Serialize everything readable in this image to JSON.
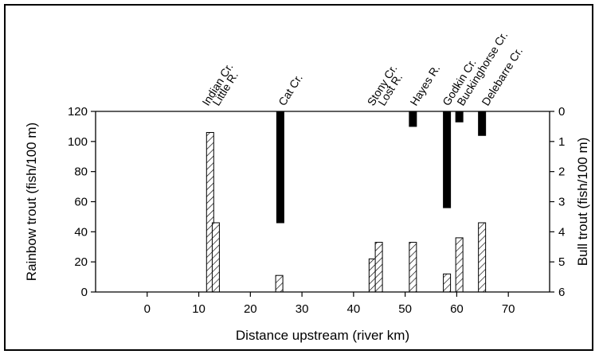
{
  "chart_data": {
    "type": "bar",
    "xlabel": "Distance upstream (river km)",
    "ylabel_left": "Rainbow trout (fish/100 m)",
    "ylabel_right": "Bull trout (fish/100 m)",
    "xlim": [
      -10,
      78
    ],
    "ylim_left": [
      0,
      120
    ],
    "ylim_right_inverted": [
      0,
      6
    ],
    "xticks": [
      0,
      10,
      20,
      30,
      40,
      50,
      60,
      70
    ],
    "yticks_left": [
      0,
      20,
      40,
      60,
      80,
      100,
      120
    ],
    "yticks_right": [
      0,
      1,
      2,
      3,
      4,
      5,
      6
    ],
    "tributaries": [
      {
        "label": "Indian Cr.",
        "x": 11.2
      },
      {
        "label": "Little R.",
        "x": 13.2
      },
      {
        "label": "Cat Cr.",
        "x": 26.0
      },
      {
        "label": "Stony Cr.",
        "x": 43.2
      },
      {
        "label": "Lost R.",
        "x": 45.3
      },
      {
        "label": "Hayes R.",
        "x": 51.5
      },
      {
        "label": "Godkin Cr.",
        "x": 57.8
      },
      {
        "label": "Buckinghorse Cr.",
        "x": 60.6
      },
      {
        "label": "Delebarre Cr.",
        "x": 65.4
      }
    ],
    "series": [
      {
        "name": "Rainbow trout",
        "axis": "left",
        "pattern": "hatched",
        "points": [
          {
            "x": 12.2,
            "value": 106
          },
          {
            "x": 13.3,
            "value": 46
          },
          {
            "x": 25.6,
            "value": 11
          },
          {
            "x": 43.7,
            "value": 22
          },
          {
            "x": 44.9,
            "value": 33
          },
          {
            "x": 51.5,
            "value": 33
          },
          {
            "x": 58.1,
            "value": 12
          },
          {
            "x": 60.5,
            "value": 36
          },
          {
            "x": 64.9,
            "value": 46
          }
        ]
      },
      {
        "name": "Bull trout",
        "axis": "right",
        "pattern": "solid",
        "points": [
          {
            "x": 25.8,
            "value": 3.7
          },
          {
            "x": 51.5,
            "value": 0.5
          },
          {
            "x": 58.1,
            "value": 3.2
          },
          {
            "x": 60.5,
            "value": 0.35
          },
          {
            "x": 64.9,
            "value": 0.8
          }
        ]
      }
    ]
  }
}
